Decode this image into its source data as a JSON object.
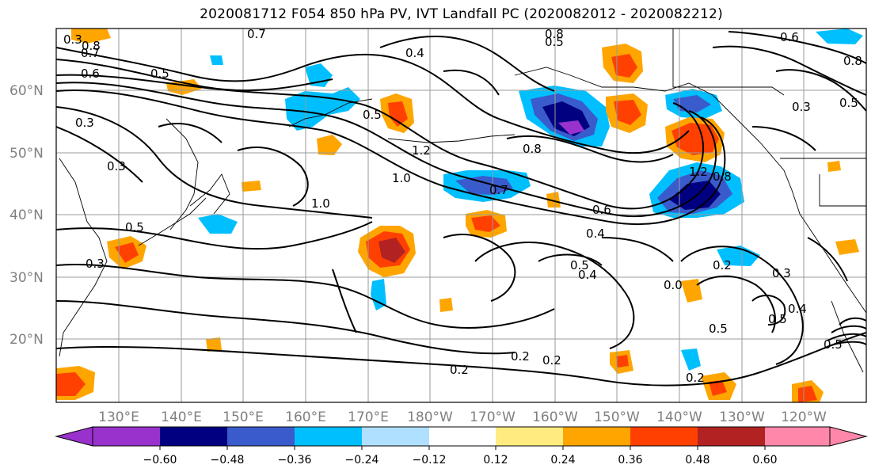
{
  "title": "2020081712 F054 850 hPa PV, IVT Landfall PC (2020082012 - 2020082212)",
  "map": {
    "lat_labels": [
      "60°N",
      "50°N",
      "40°N",
      "30°N",
      "20°N"
    ],
    "lon_labels": [
      "130°E",
      "140°E",
      "150°E",
      "160°E",
      "170°E",
      "180°W",
      "170°W",
      "160°W",
      "150°W",
      "140°W",
      "130°W",
      "120°W"
    ],
    "contour_labels": [
      "0.8",
      "0.3",
      "0.7",
      "0.6",
      "0.5",
      "0.7",
      "0.4",
      "0.8",
      "0.5",
      "0.6",
      "0.8",
      "0.3",
      "0.5",
      "0.3",
      "0.3",
      "0.5",
      "1.2",
      "1.0",
      "1.0",
      "0.7",
      "0.8",
      "1.2",
      "0.8",
      "0.6",
      "0.4",
      "0.5",
      "0.4",
      "0.2",
      "0.3",
      "0.5",
      "0.5",
      "0.2",
      "0.2",
      "0.2",
      "0.2",
      "0.5",
      "0.3",
      "0.4",
      "0.5",
      "0.0"
    ]
  },
  "colorbar": {
    "tick_labels": [
      "−0.60",
      "−0.48",
      "−0.36",
      "−0.24",
      "−0.12",
      "0.12",
      "0.24",
      "0.36",
      "0.48",
      "0.60"
    ],
    "colors": {
      "under": "#9932cc",
      "bins": [
        "#000080",
        "#3a5bcc",
        "#00bfff",
        "#b0e0ff",
        "#ffffff",
        "#ffeb80",
        "#ffa500",
        "#ff4000",
        "#b22222"
      ],
      "over": "#ff88aa"
    }
  },
  "colors": {
    "pos_fill_1": "#ffa500",
    "pos_fill_2": "#ff4000",
    "pos_fill_3": "#b22222",
    "pos_fill_0": "#ffeb80",
    "neg_fill_1": "#00bfff",
    "neg_fill_2": "#3a5bcc",
    "neg_fill_3": "#000080",
    "neg_fill_4": "#9932cc",
    "neg_fill_0": "#b0e0ff"
  }
}
